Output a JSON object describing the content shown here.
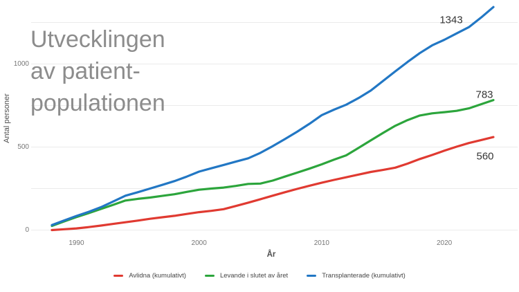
{
  "title": {
    "lines": [
      "Utvecklingen",
      "av patient-",
      "populationen"
    ]
  },
  "chart_data": {
    "type": "line",
    "title": "Utvecklingen av patient-populationen",
    "xlabel": "År",
    "ylabel": "Antal personer",
    "grid": true,
    "legend_position": "bottom",
    "xlim": [
      1988,
      2024
    ],
    "ylim": [
      0,
      1375
    ],
    "x_ticks": [
      1990,
      2000,
      2010,
      2020
    ],
    "y_ticks": [
      0,
      500,
      1000
    ],
    "y_gridlines": [
      0,
      250,
      500,
      750,
      1000,
      1250
    ],
    "x": [
      1988,
      1989,
      1990,
      1991,
      1992,
      1993,
      1994,
      1995,
      1996,
      1997,
      1998,
      1999,
      2000,
      2001,
      2002,
      2003,
      2004,
      2005,
      2006,
      2007,
      2008,
      2009,
      2010,
      2011,
      2012,
      2013,
      2014,
      2015,
      2016,
      2017,
      2018,
      2019,
      2020,
      2021,
      2022,
      2023,
      2024
    ],
    "series": [
      {
        "name": "Avlidna (kumulativt)",
        "color": "#e03a31",
        "end_label": "560",
        "label_offset": [
          -12,
          28
        ],
        "values": [
          0,
          5,
          10,
          18,
          27,
          37,
          47,
          57,
          68,
          77,
          86,
          97,
          108,
          116,
          126,
          145,
          165,
          186,
          207,
          228,
          248,
          267,
          285,
          302,
          318,
          334,
          350,
          362,
          376,
          400,
          428,
          452,
          478,
          502,
          524,
          542,
          560
        ]
      },
      {
        "name": "Levande i slutet av året",
        "color": "#2ca53c",
        "end_label": "783",
        "label_offset": [
          -13,
          -8
        ],
        "values": [
          25,
          52,
          78,
          102,
          127,
          152,
          178,
          188,
          196,
          206,
          216,
          230,
          243,
          250,
          256,
          266,
          278,
          280,
          298,
          322,
          346,
          370,
          396,
          424,
          450,
          495,
          540,
          585,
          628,
          662,
          690,
          703,
          710,
          718,
          733,
          758,
          783
        ]
      },
      {
        "name": "Transplanterade (kumulativt)",
        "color": "#2277c4",
        "end_label": "1343",
        "label_offset": [
          -61,
          19
        ],
        "values": [
          30,
          58,
          85,
          110,
          138,
          172,
          207,
          228,
          250,
          272,
          295,
          322,
          352,
          372,
          392,
          412,
          432,
          465,
          505,
          548,
          592,
          640,
          692,
          725,
          755,
          795,
          840,
          898,
          956,
          1012,
          1066,
          1112,
          1146,
          1184,
          1222,
          1280,
          1343
        ]
      }
    ]
  }
}
